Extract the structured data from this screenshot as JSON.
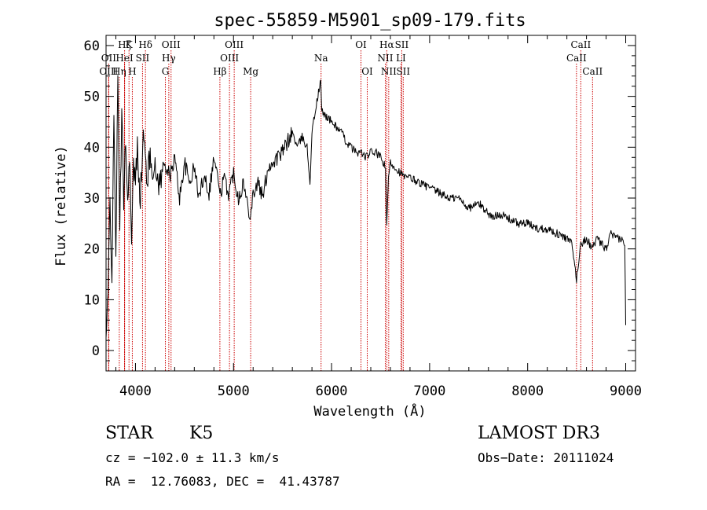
{
  "chart_data": {
    "type": "line",
    "title": "spec-55859-M5901_sp09-179.fits",
    "xlabel": "Wavelength (Å)",
    "ylabel": "Flux (relative)",
    "xlim": [
      3700,
      9100
    ],
    "ylim": [
      -4,
      62
    ],
    "xticks": [
      4000,
      5000,
      6000,
      7000,
      8000,
      9000
    ],
    "yticks": [
      0,
      10,
      20,
      30,
      40,
      50,
      60
    ],
    "grid": false,
    "series": [
      {
        "name": "flux",
        "color": "#000000",
        "x": [
          3700,
          3720,
          3740,
          3760,
          3780,
          3800,
          3820,
          3840,
          3860,
          3880,
          3900,
          3920,
          3940,
          3960,
          3980,
          4000,
          4020,
          4050,
          4080,
          4100,
          4120,
          4150,
          4200,
          4250,
          4300,
          4350,
          4400,
          4450,
          4500,
          4550,
          4600,
          4650,
          4700,
          4750,
          4800,
          4850,
          4861,
          4900,
          4950,
          5000,
          5050,
          5100,
          5150,
          5175,
          5200,
          5250,
          5300,
          5350,
          5400,
          5450,
          5500,
          5550,
          5600,
          5650,
          5700,
          5750,
          5780,
          5800,
          5850,
          5890,
          5900,
          5950,
          6000,
          6050,
          6100,
          6150,
          6200,
          6250,
          6300,
          6350,
          6400,
          6450,
          6500,
          6550,
          6563,
          6580,
          6600,
          6650,
          6700,
          6750,
          6800,
          6900,
          7000,
          7100,
          7200,
          7300,
          7400,
          7500,
          7600,
          7650,
          7700,
          7800,
          7900,
          8000,
          8100,
          8200,
          8300,
          8400,
          8450,
          8498,
          8542,
          8600,
          8662,
          8700,
          8750,
          8800,
          8850,
          8900,
          8950,
          8990,
          9000
        ],
        "y": [
          2,
          10,
          30,
          15,
          45,
          20,
          52,
          25,
          46,
          30,
          43,
          28,
          40,
          20,
          36,
          33,
          40,
          30,
          42,
          38,
          34,
          38,
          35,
          33,
          37,
          34,
          38,
          30,
          37,
          33,
          36,
          30,
          35,
          31,
          38,
          33,
          30,
          34,
          31,
          35,
          30,
          33,
          28,
          27,
          31,
          33,
          30,
          36,
          37,
          38,
          39,
          41,
          43,
          40,
          42,
          40,
          33,
          43,
          49,
          53,
          47,
          46,
          45,
          44,
          43,
          41,
          40,
          39,
          39,
          38,
          39,
          39,
          38,
          36,
          24,
          34,
          37,
          36,
          35,
          34,
          34,
          33,
          32,
          31,
          30,
          30,
          28,
          29,
          27,
          26,
          27,
          26,
          25,
          25,
          24,
          24,
          23,
          22,
          21,
          14,
          21,
          22,
          20,
          22,
          21,
          20,
          23,
          22,
          22,
          21,
          5
        ]
      }
    ],
    "lines": [
      {
        "label": "Hζ",
        "x": 3889,
        "row": 0
      },
      {
        "label": "K",
        "x": 3934,
        "row": 0
      },
      {
        "label": "Hδ",
        "x": 4102,
        "row": 0
      },
      {
        "label": "OIII",
        "x": 4363,
        "row": 0
      },
      {
        "label": "OIII",
        "x": 5007,
        "row": 0
      },
      {
        "label": "OI",
        "x": 6300,
        "row": 0
      },
      {
        "label": "Hα",
        "x": 6563,
        "row": 0
      },
      {
        "label": "SII",
        "x": 6716,
        "row": 0
      },
      {
        "label": "CaII",
        "x": 8542,
        "row": 0
      },
      {
        "label": "OII",
        "x": 3727,
        "row": 1
      },
      {
        "label": "HeI",
        "x": 3889,
        "row": 1
      },
      {
        "label": "SII",
        "x": 4072,
        "row": 1
      },
      {
        "label": "Hγ",
        "x": 4340,
        "row": 1
      },
      {
        "label": "OIII",
        "x": 4959,
        "row": 1
      },
      {
        "label": "Na",
        "x": 5893,
        "row": 1
      },
      {
        "label": "NII",
        "x": 6548,
        "row": 1
      },
      {
        "label": "LI",
        "x": 6708,
        "row": 1
      },
      {
        "label": "CaII",
        "x": 8498,
        "row": 1
      },
      {
        "label": "OIII",
        "x": 3727,
        "row": 2
      },
      {
        "label": "Hη",
        "x": 3835,
        "row": 2
      },
      {
        "label": "H",
        "x": 3968,
        "row": 2
      },
      {
        "label": "G",
        "x": 4305,
        "row": 2
      },
      {
        "label": "Hβ",
        "x": 4861,
        "row": 2
      },
      {
        "label": "Mg",
        "x": 5175,
        "row": 2
      },
      {
        "label": "OI",
        "x": 6364,
        "row": 2
      },
      {
        "label": "NII",
        "x": 6583,
        "row": 2
      },
      {
        "label": "SII",
        "x": 6731,
        "row": 2
      },
      {
        "label": "CaII",
        "x": 8662,
        "row": 2
      }
    ],
    "line_color": "#cc0000"
  },
  "info": {
    "object_class": "STAR",
    "subclass": "K5",
    "survey": "LAMOST DR3",
    "velocity": "cz = −102.0 ± 11.3 km/s",
    "obs_date": "Obs−Date: 20111024",
    "coords": "RA =  12.76083, DEC =  41.43787"
  }
}
